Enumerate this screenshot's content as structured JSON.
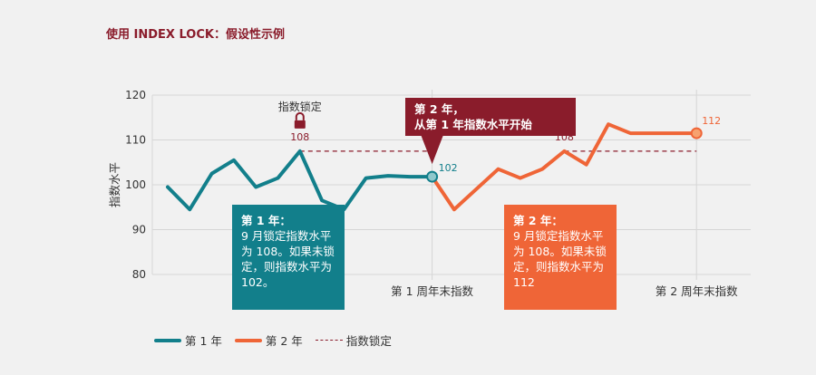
{
  "title": "使用 INDEX LOCK：假设性示例",
  "colors": {
    "year1": "#127f8b",
    "year2": "#ef6537",
    "lock": "#8a1c2b",
    "grid": "#d6d6d6"
  },
  "chart_data": {
    "type": "line",
    "ylabel": "指数水平",
    "ylim": [
      80,
      120
    ],
    "yticks": [
      80,
      90,
      100,
      110,
      120
    ],
    "x_labels": [
      {
        "x": 12,
        "label": "第 1 周年末指数"
      },
      {
        "x": 24,
        "label": "第 2 周年末指数"
      }
    ],
    "grid": true,
    "legend_position": "bottom-left",
    "series": [
      {
        "name": "第 1 年",
        "x": [
          0,
          1,
          2,
          3,
          4,
          5,
          6,
          7,
          8,
          9,
          10,
          11,
          12
        ],
        "values": [
          99.5,
          94.5,
          102.5,
          105.5,
          99.5,
          101.5,
          107.5,
          96.5,
          94.5,
          101.5,
          102.0,
          101.8,
          101.8
        ]
      },
      {
        "name": "第 2 年",
        "x": [
          12,
          13,
          14,
          15,
          16,
          17,
          18,
          19,
          20,
          21,
          22,
          23,
          24
        ],
        "values": [
          101.8,
          94.5,
          99.0,
          103.5,
          101.5,
          103.5,
          107.5,
          104.5,
          113.5,
          111.5,
          111.5,
          111.5,
          111.5
        ]
      },
      {
        "name": "指数锁定",
        "style": "dashed",
        "segments": [
          [
            6,
            12,
            107.5
          ],
          [
            18,
            24,
            107.5
          ]
        ]
      }
    ],
    "annotations": [
      {
        "x": 6,
        "y": 107.5,
        "label": "108",
        "lock_icon": true
      },
      {
        "x": 6,
        "y": 107.5,
        "label": "指数锁定",
        "role": "lock-caption"
      },
      {
        "x": 12,
        "y": 101.8,
        "label": "102"
      },
      {
        "x": 18,
        "y": 107.5,
        "label": "108",
        "lock_icon": true
      },
      {
        "x": 24,
        "y": 111.5,
        "label": "112"
      }
    ]
  },
  "callout": {
    "line1": "第 2 年，",
    "line2": "从第 1 年指数水平开始"
  },
  "year1_box": {
    "heading": "第 1 年：",
    "body": "9 月锁定指数水平为 108。如果未锁定，则指数水平为 102。"
  },
  "year2_box": {
    "heading": "第 2 年：",
    "body": "9 月锁定指数水平为 108。如果未锁定，则指数水平为 112"
  },
  "legend": [
    {
      "label": "第 1 年",
      "key": "year1"
    },
    {
      "label": "第 2 年",
      "key": "year2"
    },
    {
      "label": "指数锁定",
      "key": "lock"
    }
  ]
}
